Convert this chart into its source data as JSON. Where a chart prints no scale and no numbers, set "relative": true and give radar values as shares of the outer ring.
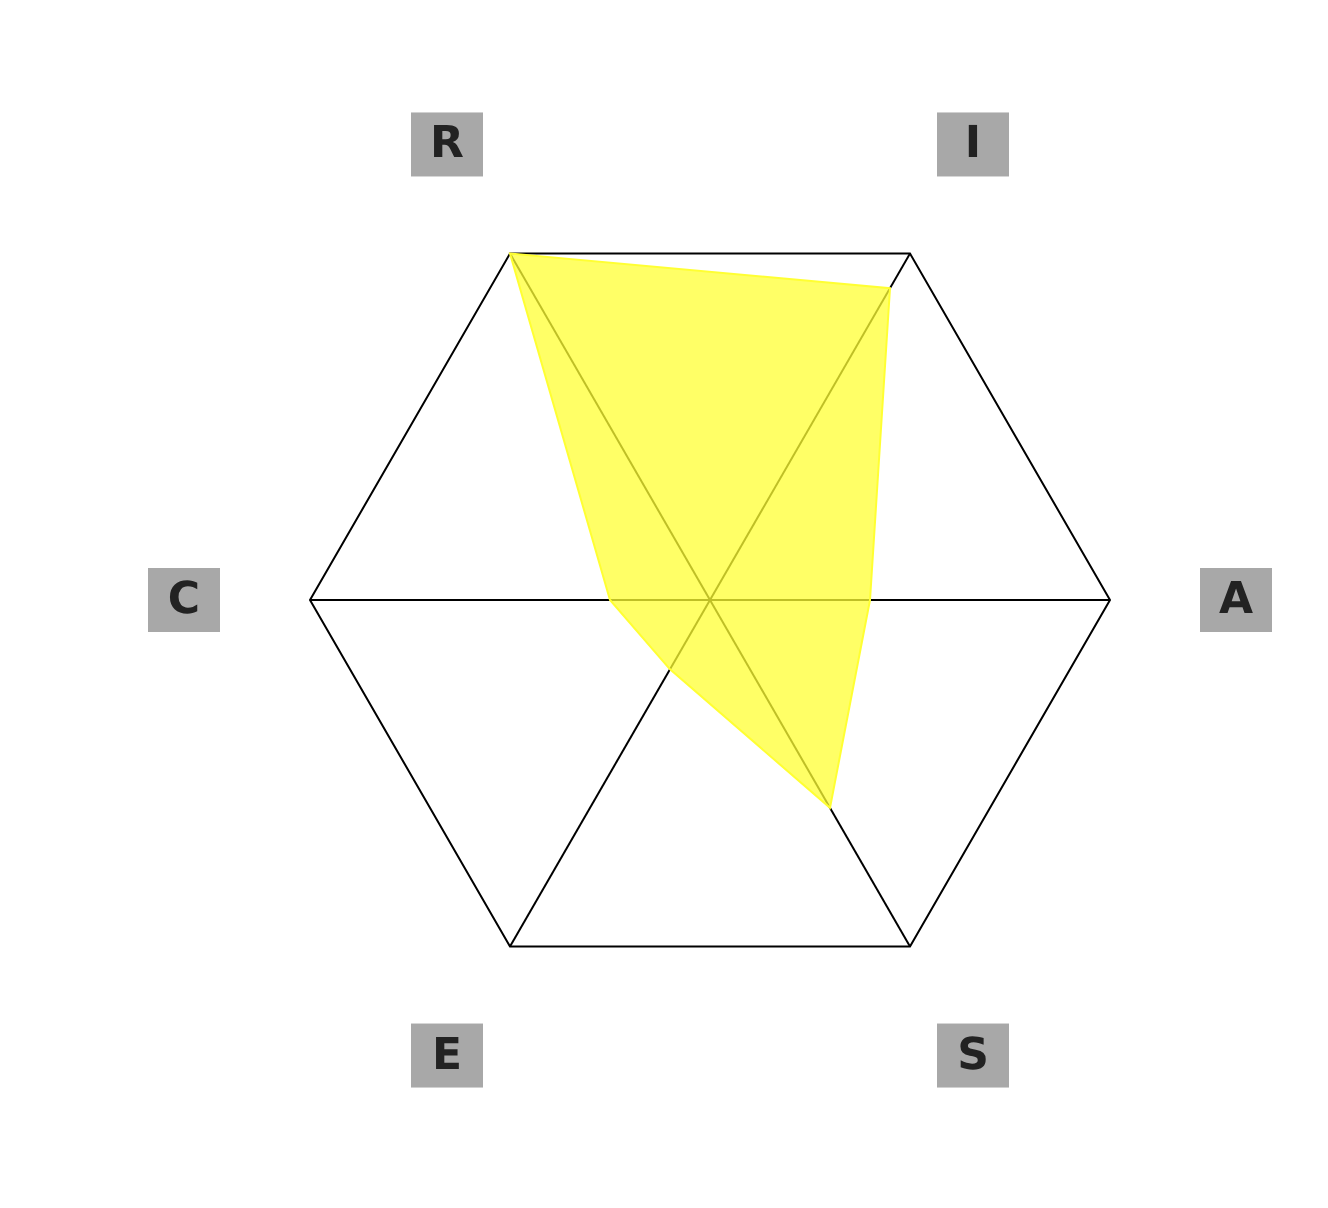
{
  "chart_data": {
    "type": "radar",
    "relative": true,
    "grid": true,
    "marker": "none",
    "categories": [
      "R",
      "I",
      "A",
      "S",
      "E",
      "C"
    ],
    "series": [
      {
        "color": "#ffff33",
        "values": [
          1.0,
          0.9,
          0.4,
          0.6,
          0.2,
          0.25
        ]
      }
    ]
  }
}
